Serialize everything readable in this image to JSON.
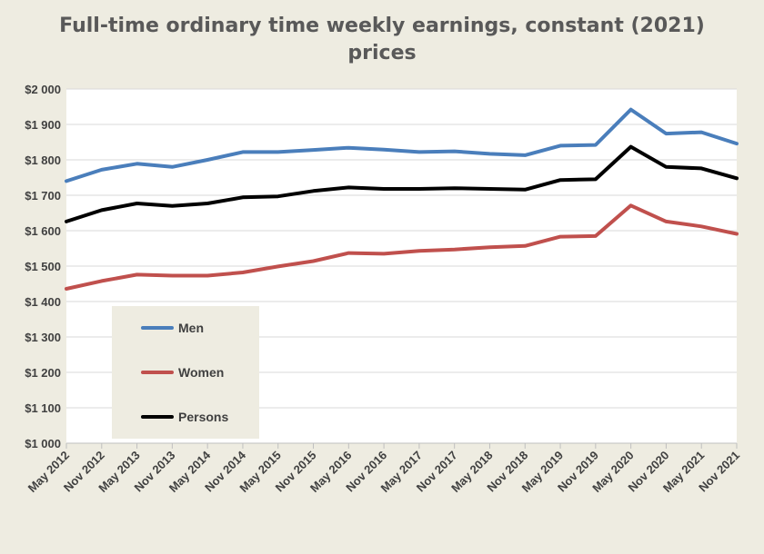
{
  "chart_data": {
    "type": "line",
    "title_line1": "Full-time ordinary time weekly earnings, constant (2021)",
    "title_line2": "prices",
    "xlabel": "",
    "ylabel": "",
    "ylim": [
      1000,
      2000
    ],
    "y_ticks": [
      1000,
      1100,
      1200,
      1300,
      1400,
      1500,
      1600,
      1700,
      1800,
      1900,
      2000
    ],
    "y_tick_labels": [
      "$1 000",
      "$1 100",
      "$1 200",
      "$1 300",
      "$1 400",
      "$1 500",
      "$1 600",
      "$1 700",
      "$1 800",
      "$1 900",
      "$2 000"
    ],
    "grid": true,
    "legend_position": "lower-left",
    "categories": [
      "May 2012",
      "Nov 2012",
      "May 2013",
      "Nov 2013",
      "May 2014",
      "Nov 2014",
      "May 2015",
      "Nov 2015",
      "May 2016",
      "Nov 2016",
      "May 2017",
      "Nov 2017",
      "May 2018",
      "Nov 2018",
      "May 2019",
      "Nov 2019",
      "May 2020",
      "Nov 2020",
      "May 2021",
      "Nov 2021"
    ],
    "series": [
      {
        "name": "Men",
        "color": "#4a7ebb",
        "values": [
          1740,
          1772,
          1789,
          1780,
          1800,
          1822,
          1822,
          1828,
          1834,
          1829,
          1822,
          1824,
          1817,
          1813,
          1840,
          1842,
          1942,
          1874,
          1878,
          1846
        ]
      },
      {
        "name": "Women",
        "color": "#c0504d",
        "values": [
          1436,
          1458,
          1476,
          1473,
          1473,
          1482,
          1499,
          1514,
          1537,
          1535,
          1543,
          1547,
          1553,
          1557,
          1583,
          1585,
          1671,
          1626,
          1612,
          1591
        ]
      },
      {
        "name": "Persons",
        "color": "#000000",
        "values": [
          1626,
          1658,
          1677,
          1670,
          1677,
          1694,
          1697,
          1712,
          1722,
          1718,
          1718,
          1720,
          1718,
          1716,
          1743,
          1745,
          1837,
          1780,
          1776,
          1748
        ]
      }
    ]
  }
}
